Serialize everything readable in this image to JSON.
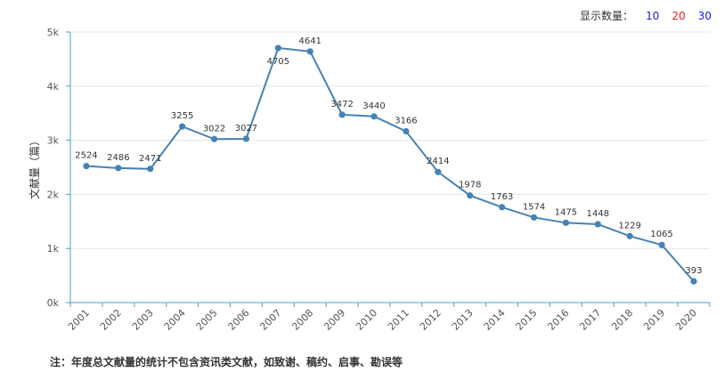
{
  "controls": {
    "label": "显示数量：",
    "options": [
      {
        "label": "10",
        "color": "#1a1adf"
      },
      {
        "label": "20",
        "color": "#e02020"
      },
      {
        "label": "30",
        "color": "#1a1adf"
      }
    ]
  },
  "chart_data": {
    "type": "line",
    "ylabel": "文献量（篇）",
    "xlabel": "",
    "ylim": [
      0,
      5000
    ],
    "yticks": [
      "0k",
      "1k",
      "2k",
      "3k",
      "4k",
      "5k"
    ],
    "grid": true,
    "color": "#4682b4",
    "categories": [
      "2001",
      "2002",
      "2003",
      "2004",
      "2005",
      "2006",
      "2007",
      "2008",
      "2009",
      "2010",
      "2011",
      "2012",
      "2013",
      "2014",
      "2015",
      "2016",
      "2017",
      "2018",
      "2019",
      "2020"
    ],
    "values": [
      2524,
      2486,
      2471,
      3255,
      3022,
      3027,
      4705,
      4641,
      3472,
      3440,
      3166,
      2414,
      1978,
      1763,
      1574,
      1475,
      1448,
      1229,
      1065,
      393
    ]
  },
  "footnote": "注：年度总文献量的统计不包含资讯类文献，如致谢、稿约、启事、勘误等"
}
